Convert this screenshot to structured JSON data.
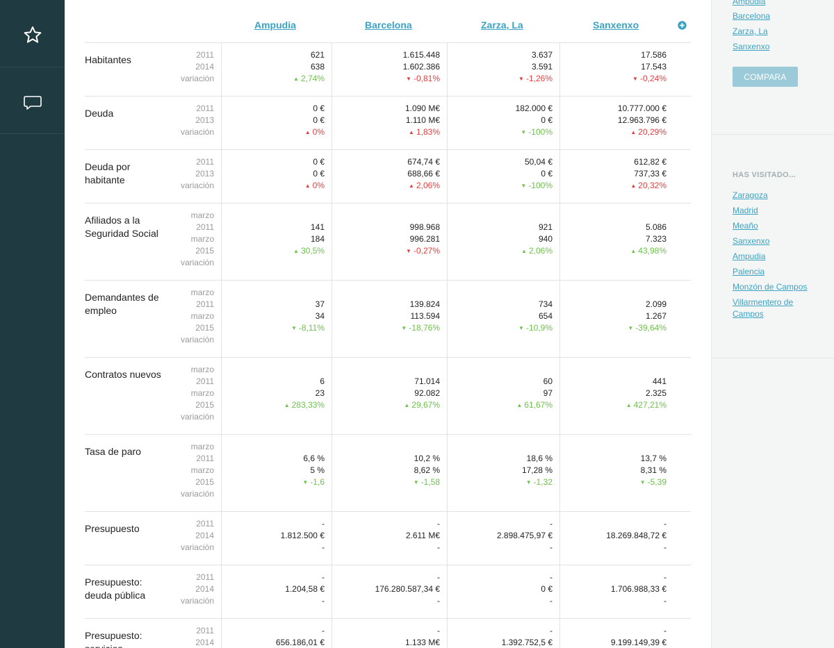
{
  "sidebar": {
    "star_icon": "star-icon",
    "comment_icon": "comment-icon"
  },
  "header": {
    "columns": [
      "Ampudia",
      "Barcelona",
      "Zarza, La",
      "Sanxenxo"
    ],
    "add_icon": "plus-circle-icon"
  },
  "rows": [
    {
      "label": "Habitantes",
      "years": [
        "2011",
        "2014",
        "variación"
      ],
      "values": [
        [
          "621",
          "638",
          "2,74%"
        ],
        [
          "1.615.448",
          "1.602.386",
          "-0,81%"
        ],
        [
          "3.637",
          "3.591",
          "-1,26%"
        ],
        [
          "17.586",
          "17.543",
          "-0,24%"
        ]
      ],
      "trend": [
        "up-green",
        "down-red",
        "down-red",
        "down-red"
      ]
    },
    {
      "label": "Deuda",
      "years": [
        "2011",
        "2013",
        "variación"
      ],
      "values": [
        [
          "0 €",
          "0 €",
          "0%"
        ],
        [
          "1.090 M€",
          "1.110 M€",
          "1,83%"
        ],
        [
          "182.000 €",
          "0 €",
          "-100%"
        ],
        [
          "10.777.000 €",
          "12.963.796 €",
          "20,29%"
        ]
      ],
      "trend": [
        "up-red",
        "up-red",
        "down-green",
        "up-red"
      ]
    },
    {
      "label": "Deuda por habitante",
      "years": [
        "2011",
        "2013",
        "variación"
      ],
      "values": [
        [
          "0 €",
          "0 €",
          "0%"
        ],
        [
          "674,74 €",
          "688,66 €",
          "2,06%"
        ],
        [
          "50,04 €",
          "0 €",
          "-100%"
        ],
        [
          "612,82 €",
          "737,33 €",
          "20,32%"
        ]
      ],
      "trend": [
        "up-red",
        "up-red",
        "down-green",
        "up-red"
      ]
    },
    {
      "label": "Afiliados a la Seguridad Social",
      "years": [
        "marzo",
        "2011",
        "marzo",
        "2015",
        "variación"
      ],
      "values": [
        [
          "141",
          "184",
          "30,5%"
        ],
        [
          "998.968",
          "996.281",
          "-0,27%"
        ],
        [
          "921",
          "940",
          "2,06%"
        ],
        [
          "5.086",
          "7.323",
          "43,98%"
        ]
      ],
      "trend": [
        "up-green",
        "down-red",
        "up-green",
        "up-green"
      ]
    },
    {
      "label": "Demandantes de empleo",
      "years": [
        "marzo",
        "2011",
        "marzo",
        "2015",
        "variación"
      ],
      "values": [
        [
          "37",
          "34",
          "-8,11%"
        ],
        [
          "139.824",
          "113.594",
          "-18,76%"
        ],
        [
          "734",
          "654",
          "-10,9%"
        ],
        [
          "2.099",
          "1.267",
          "-39,64%"
        ]
      ],
      "trend": [
        "down-green",
        "down-green",
        "down-green",
        "down-green"
      ]
    },
    {
      "label": "Contratos nuevos",
      "years": [
        "marzo",
        "2011",
        "marzo",
        "2015",
        "variación"
      ],
      "values": [
        [
          "6",
          "23",
          "283,33%"
        ],
        [
          "71.014",
          "92.082",
          "29,67%"
        ],
        [
          "60",
          "97",
          "61,67%"
        ],
        [
          "441",
          "2.325",
          "427,21%"
        ]
      ],
      "trend": [
        "up-green",
        "up-green",
        "up-green",
        "up-green"
      ]
    },
    {
      "label": "Tasa de paro",
      "years": [
        "marzo",
        "2011",
        "marzo",
        "2015",
        "variación"
      ],
      "values": [
        [
          "6,6 %",
          "5 %",
          "-1,6"
        ],
        [
          "10,2 %",
          "8,62 %",
          "-1,58"
        ],
        [
          "18,6 %",
          "17,28 %",
          "-1,32"
        ],
        [
          "13,7 %",
          "8,31 %",
          "-5,39"
        ]
      ],
      "trend": [
        "down-green",
        "down-green",
        "down-green",
        "down-green"
      ]
    },
    {
      "label": "Presupuesto",
      "years": [
        "2011",
        "2014",
        "variación"
      ],
      "values": [
        [
          "-",
          "1.812.500 €",
          "-"
        ],
        [
          "-",
          "2.611 M€",
          "-"
        ],
        [
          "-",
          "2.898.475,97 €",
          "-"
        ],
        [
          "-",
          "18.269.848,72 €",
          "-"
        ]
      ],
      "trend": [
        "none",
        "none",
        "none",
        "none"
      ]
    },
    {
      "label": "Presupuesto: deuda pública",
      "years": [
        "2011",
        "2014",
        "variación"
      ],
      "values": [
        [
          "-",
          "1.204,58 €",
          "-"
        ],
        [
          "-",
          "176.280.587,34 €",
          "-"
        ],
        [
          "-",
          "0 €",
          "-"
        ],
        [
          "-",
          "1.706.988,33 €",
          "-"
        ]
      ],
      "trend": [
        "none",
        "none",
        "none",
        "none"
      ]
    },
    {
      "label": "Presupuesto: servicios",
      "years": [
        "2011",
        "2014"
      ],
      "values": [
        [
          "-",
          "656.186,01 €"
        ],
        [
          "-",
          "1.133 M€"
        ],
        [
          "-",
          "1.392.752,5 €"
        ],
        [
          "-",
          "9.199.149,39 €"
        ]
      ],
      "trend": [
        "none",
        "none",
        "none",
        "none"
      ]
    }
  ],
  "rightbar": {
    "compare_list": [
      "Ampudia",
      "Barcelona",
      "Zarza, La",
      "Sanxenxo"
    ],
    "compare_button": "COMPARA",
    "visited_heading": "HAS VISITADO...",
    "visited": [
      "Zaragoza",
      "Madrid",
      "Meaño",
      "Sanxenxo",
      "Ampudia",
      "Palencia",
      "Monzón de Campos",
      "Villarmentero de Campos"
    ]
  },
  "colors": {
    "sidebar": "#1f3a40",
    "link": "#3aa3c3",
    "up": "#6cc24a",
    "down": "#e04040",
    "button": "#9bcad9"
  }
}
